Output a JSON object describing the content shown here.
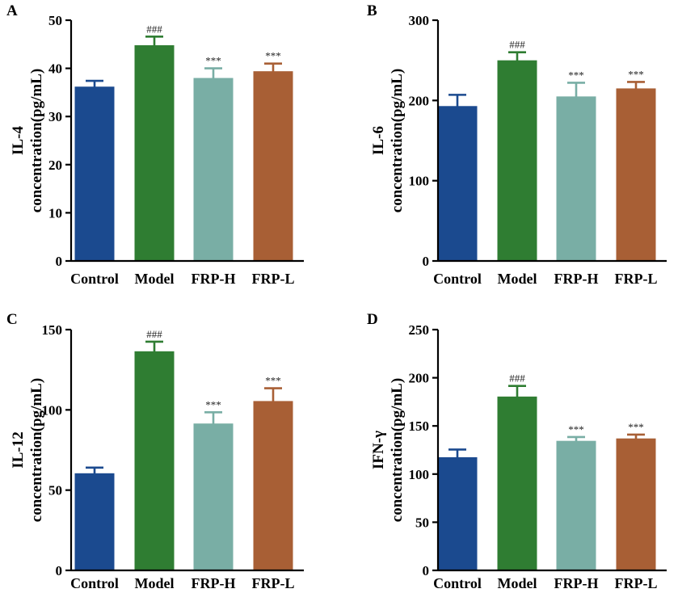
{
  "colors": {
    "Control": "#1b4a8f",
    "Model": "#2f7d32",
    "FRP-H": "#79aea5",
    "FRP-L": "#a85f35"
  },
  "chart_data": [
    {
      "panel": "A",
      "type": "bar",
      "ylabel_line1": "IL-4",
      "ylabel_line2": "concentration(pg/mL)",
      "categories": [
        "Control",
        "Model",
        "FRP-H",
        "FRP-L"
      ],
      "values": [
        36.2,
        44.8,
        38.0,
        39.4
      ],
      "errors": [
        1.2,
        1.8,
        2.0,
        1.6
      ],
      "significance": [
        "",
        "###",
        "***",
        "***"
      ],
      "ylim": [
        0,
        50
      ],
      "yticks": [
        0,
        10,
        20,
        30,
        40,
        50
      ]
    },
    {
      "panel": "B",
      "type": "bar",
      "ylabel_line1": "IL-6",
      "ylabel_line2": "concentration(pg/mL)",
      "categories": [
        "Control",
        "Model",
        "FRP-H",
        "FRP-L"
      ],
      "values": [
        193,
        250,
        205,
        215
      ],
      "errors": [
        14,
        10,
        17,
        8
      ],
      "significance": [
        "",
        "###",
        "***",
        "***"
      ],
      "ylim": [
        0,
        300
      ],
      "yticks": [
        0,
        100,
        200,
        300
      ]
    },
    {
      "panel": "C",
      "type": "bar",
      "ylabel_line1": "IL-12",
      "ylabel_line2": "concentration(pg/mL)",
      "categories": [
        "Control",
        "Model",
        "FRP-H",
        "FRP-L"
      ],
      "values": [
        60.5,
        136.5,
        91.5,
        105.5
      ],
      "errors": [
        3.5,
        6,
        7,
        8
      ],
      "significance": [
        "",
        "###",
        "***",
        "***"
      ],
      "ylim": [
        0,
        150
      ],
      "yticks": [
        0,
        50,
        100,
        150
      ]
    },
    {
      "panel": "D",
      "type": "bar",
      "ylabel_line1": "IFN-γ",
      "ylabel_line2": "concentration(pg/mL)",
      "categories": [
        "Control",
        "Model",
        "FRP-H",
        "FRP-L"
      ],
      "values": [
        117.5,
        180.5,
        134.5,
        137
      ],
      "errors": [
        8,
        11,
        4,
        4
      ],
      "significance": [
        "",
        "###",
        "***",
        "***"
      ],
      "ylim": [
        0,
        250
      ],
      "yticks": [
        0,
        50,
        100,
        150,
        200,
        250
      ]
    }
  ]
}
